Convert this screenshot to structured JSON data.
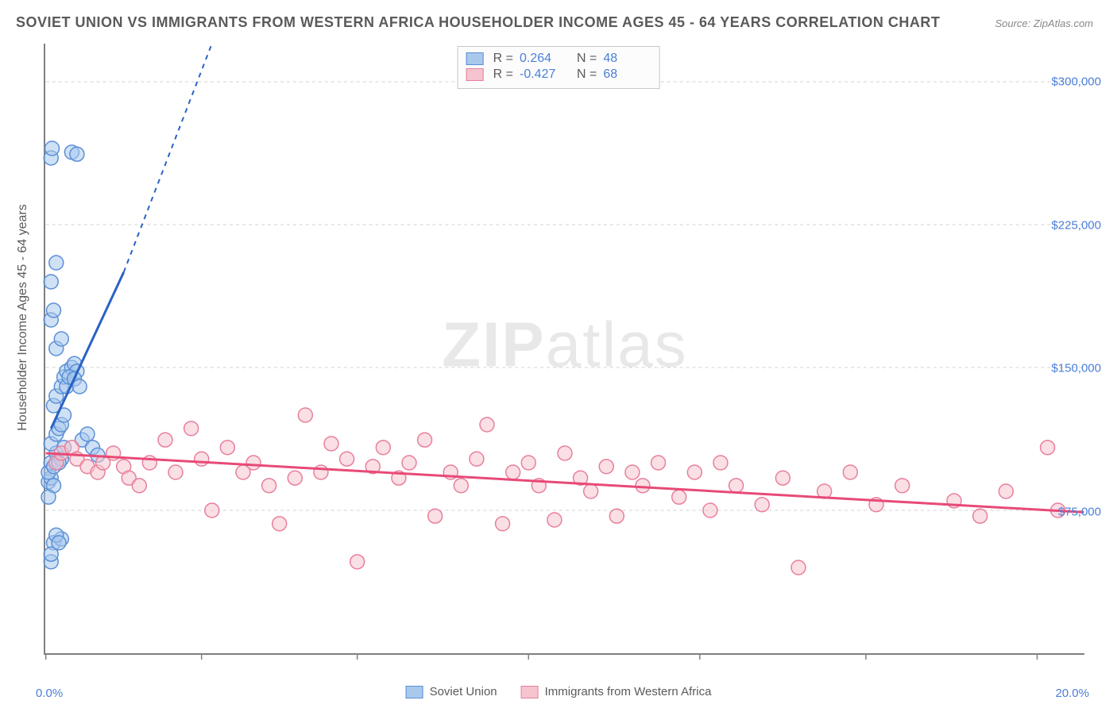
{
  "title": "SOVIET UNION VS IMMIGRANTS FROM WESTERN AFRICA HOUSEHOLDER INCOME AGES 45 - 64 YEARS CORRELATION CHART",
  "source": "Source: ZipAtlas.com",
  "watermark_zip": "ZIP",
  "watermark_atlas": "atlas",
  "yaxis_label": "Householder Income Ages 45 - 64 years",
  "xaxis": {
    "min": 0.0,
    "max": 20.0,
    "label_min": "0.0%",
    "label_max": "20.0%",
    "tick_positions": [
      0,
      3.0,
      6.0,
      9.3,
      12.6,
      15.8,
      19.1
    ]
  },
  "yaxis": {
    "min": 0,
    "max": 320000,
    "ticks": [
      75000,
      150000,
      225000,
      300000
    ],
    "tick_labels": [
      "$75,000",
      "$150,000",
      "$225,000",
      "$300,000"
    ]
  },
  "series": [
    {
      "name": "Soviet Union",
      "color_fill": "#a8c8ec",
      "color_stroke": "#5b8fd6",
      "line_color": "#2962c4",
      "r_value": "0.264",
      "n_value": "48",
      "marker_radius": 9,
      "trendline": {
        "x1": 0.1,
        "y1": 118000,
        "x2": 1.5,
        "y2": 200000,
        "x2_dash": 3.2,
        "y2_dash": 320000
      },
      "points": [
        [
          0.1,
          48000
        ],
        [
          0.15,
          58000
        ],
        [
          0.1,
          52000
        ],
        [
          0.3,
          60000
        ],
        [
          0.05,
          90000
        ],
        [
          0.1,
          92000
        ],
        [
          0.05,
          95000
        ],
        [
          0.1,
          100000
        ],
        [
          0.15,
          98000
        ],
        [
          0.2,
          105000
        ],
        [
          0.3,
          102000
        ],
        [
          0.1,
          110000
        ],
        [
          0.2,
          115000
        ],
        [
          0.25,
          118000
        ],
        [
          0.3,
          120000
        ],
        [
          0.35,
          125000
        ],
        [
          0.15,
          130000
        ],
        [
          0.2,
          135000
        ],
        [
          0.3,
          140000
        ],
        [
          0.35,
          145000
        ],
        [
          0.4,
          148000
        ],
        [
          0.5,
          150000
        ],
        [
          0.55,
          152000
        ],
        [
          0.6,
          148000
        ],
        [
          0.2,
          160000
        ],
        [
          0.3,
          165000
        ],
        [
          0.1,
          175000
        ],
        [
          0.15,
          180000
        ],
        [
          0.1,
          195000
        ],
        [
          0.2,
          205000
        ],
        [
          0.1,
          260000
        ],
        [
          0.12,
          265000
        ],
        [
          0.5,
          263000
        ],
        [
          0.6,
          262000
        ],
        [
          0.4,
          140000
        ],
        [
          0.45,
          145000
        ],
        [
          0.25,
          100000
        ],
        [
          0.35,
          108000
        ],
        [
          0.15,
          88000
        ],
        [
          0.05,
          82000
        ],
        [
          0.55,
          144000
        ],
        [
          0.65,
          140000
        ],
        [
          0.7,
          112000
        ],
        [
          0.8,
          115000
        ],
        [
          0.9,
          108000
        ],
        [
          1.0,
          104000
        ],
        [
          0.2,
          62000
        ],
        [
          0.25,
          58000
        ]
      ]
    },
    {
      "name": "Immigrants from Western Africa",
      "color_fill": "#f5c4cf",
      "color_stroke": "#e87f9b",
      "line_color": "#e84a77",
      "r_value": "-0.427",
      "n_value": "68",
      "marker_radius": 9,
      "trendline": {
        "x1": 0.0,
        "y1": 105000,
        "x2": 20.0,
        "y2": 74000
      },
      "points": [
        [
          0.2,
          100000
        ],
        [
          0.3,
          105000
        ],
        [
          0.5,
          108000
        ],
        [
          0.6,
          102000
        ],
        [
          0.8,
          98000
        ],
        [
          1.0,
          95000
        ],
        [
          1.1,
          100000
        ],
        [
          1.3,
          105000
        ],
        [
          1.5,
          98000
        ],
        [
          1.6,
          92000
        ],
        [
          1.8,
          88000
        ],
        [
          2.0,
          100000
        ],
        [
          2.3,
          112000
        ],
        [
          2.5,
          95000
        ],
        [
          2.8,
          118000
        ],
        [
          3.0,
          102000
        ],
        [
          3.2,
          75000
        ],
        [
          3.5,
          108000
        ],
        [
          3.8,
          95000
        ],
        [
          4.0,
          100000
        ],
        [
          4.3,
          88000
        ],
        [
          4.5,
          68000
        ],
        [
          4.8,
          92000
        ],
        [
          5.0,
          125000
        ],
        [
          5.3,
          95000
        ],
        [
          5.5,
          110000
        ],
        [
          5.8,
          102000
        ],
        [
          6.0,
          48000
        ],
        [
          6.3,
          98000
        ],
        [
          6.5,
          108000
        ],
        [
          6.8,
          92000
        ],
        [
          7.0,
          100000
        ],
        [
          7.3,
          112000
        ],
        [
          7.5,
          72000
        ],
        [
          7.8,
          95000
        ],
        [
          8.0,
          88000
        ],
        [
          8.3,
          102000
        ],
        [
          8.5,
          120000
        ],
        [
          8.8,
          68000
        ],
        [
          9.0,
          95000
        ],
        [
          9.3,
          100000
        ],
        [
          9.5,
          88000
        ],
        [
          9.8,
          70000
        ],
        [
          10.0,
          105000
        ],
        [
          10.3,
          92000
        ],
        [
          10.5,
          85000
        ],
        [
          10.8,
          98000
        ],
        [
          11.0,
          72000
        ],
        [
          11.3,
          95000
        ],
        [
          11.5,
          88000
        ],
        [
          11.8,
          100000
        ],
        [
          12.2,
          82000
        ],
        [
          12.5,
          95000
        ],
        [
          12.8,
          75000
        ],
        [
          13.0,
          100000
        ],
        [
          13.3,
          88000
        ],
        [
          13.8,
          78000
        ],
        [
          14.2,
          92000
        ],
        [
          14.5,
          45000
        ],
        [
          15.0,
          85000
        ],
        [
          15.5,
          95000
        ],
        [
          16.0,
          78000
        ],
        [
          16.5,
          88000
        ],
        [
          17.5,
          80000
        ],
        [
          18.0,
          72000
        ],
        [
          18.5,
          85000
        ],
        [
          19.3,
          108000
        ],
        [
          19.5,
          75000
        ]
      ]
    }
  ],
  "legend_labels": {
    "r": "R =",
    "n": "N ="
  },
  "gridline_color": "#d0d0d0",
  "background_color": "#ffffff",
  "axis_color": "#808080",
  "text_color": "#5a5a5a",
  "tick_label_color": "#4a7fd8"
}
